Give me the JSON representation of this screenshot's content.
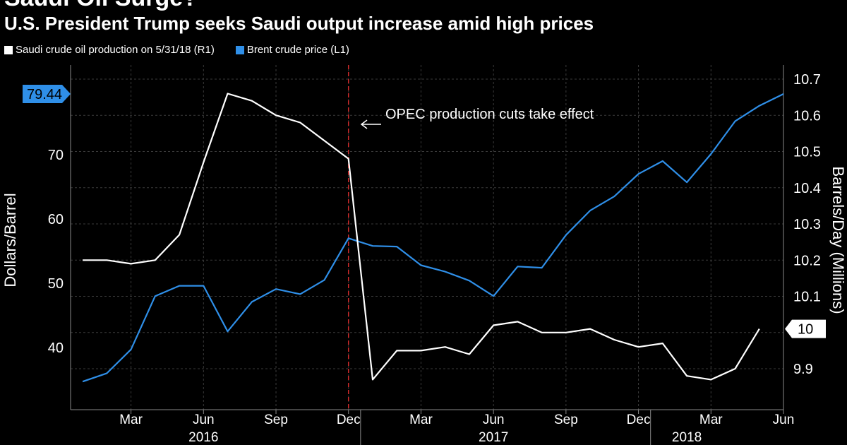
{
  "header": {
    "title": "Saudi Oil Surge?",
    "subtitle": "U.S. President Trump seeks Saudi output increase amid high prices"
  },
  "colors": {
    "background": "#000000",
    "brent": "#2f8fe8",
    "saudi": "#ffffff",
    "marker": "#cc2a2a"
  },
  "chart_data": {
    "type": "line",
    "legend": {
      "placement": "top-left",
      "entries": [
        "Saudi crude oil production on 5/31/18 (R1)",
        "Brent crude price (L1)"
      ]
    },
    "months": [
      "2016-01",
      "2016-02",
      "2016-03",
      "2016-04",
      "2016-05",
      "2016-06",
      "2016-07",
      "2016-08",
      "2016-09",
      "2016-10",
      "2016-11",
      "2016-12",
      "2017-01",
      "2017-02",
      "2017-03",
      "2017-04",
      "2017-05",
      "2017-06",
      "2017-07",
      "2017-08",
      "2017-09",
      "2017-10",
      "2017-11",
      "2017-12",
      "2018-01",
      "2018-02",
      "2018-03",
      "2018-04",
      "2018-05",
      "2018-06"
    ],
    "x_tick_labels": [
      "Mar",
      "Jun",
      "Sep",
      "Dec",
      "Mar",
      "Jun",
      "Sep",
      "Dec",
      "Mar",
      "Jun"
    ],
    "x_tick_months": [
      "2016-03",
      "2016-06",
      "2016-09",
      "2016-12",
      "2017-03",
      "2017-06",
      "2017-09",
      "2017-12",
      "2018-03",
      "2018-06"
    ],
    "year_labels": [
      {
        "label": "2016",
        "center_month": "2016-06"
      },
      {
        "label": "2017",
        "center_month": "2017-06"
      },
      {
        "label": "2018",
        "center_month": "2018-02"
      }
    ],
    "left_axis": {
      "label": "Dollars/Barrel",
      "min": 30,
      "max": 79.44,
      "ticks": [
        40,
        50,
        60,
        70
      ]
    },
    "right_axis": {
      "label": "Barrels/Day (Millions)",
      "min": 9.83,
      "max": 10.7,
      "ticks": [
        9.9,
        10,
        10.1,
        10.2,
        10.3,
        10.4,
        10.5,
        10.6,
        10.7
      ]
    },
    "series": [
      {
        "name": "Brent crude price (L1)",
        "axis": "left",
        "x": [
          "2016-01",
          "2016-02",
          "2016-03",
          "2016-04",
          "2016-05",
          "2016-06",
          "2016-07",
          "2016-08",
          "2016-09",
          "2016-10",
          "2016-11",
          "2016-12",
          "2017-01",
          "2017-02",
          "2017-03",
          "2017-04",
          "2017-05",
          "2017-06",
          "2017-07",
          "2017-08",
          "2017-09",
          "2017-10",
          "2017-11",
          "2017-12",
          "2018-01",
          "2018-02",
          "2018-03",
          "2018-04",
          "2018-05",
          "2018-06"
        ],
        "values": [
          34.7,
          36.0,
          39.7,
          48.0,
          49.6,
          49.6,
          42.5,
          47.1,
          49.1,
          48.3,
          50.5,
          57.0,
          55.8,
          55.7,
          52.8,
          51.8,
          50.4,
          48.0,
          52.6,
          52.4,
          57.5,
          61.3,
          63.5,
          67.0,
          69.0,
          65.7,
          70.1,
          75.2,
          77.6,
          79.44
        ],
        "last_value_label": "79.44"
      },
      {
        "name": "Saudi crude oil production on 5/31/18 (R1)",
        "axis": "right",
        "x": [
          "2016-01",
          "2016-02",
          "2016-03",
          "2016-04",
          "2016-05",
          "2016-06",
          "2016-07",
          "2016-08",
          "2016-09",
          "2016-10",
          "2016-11",
          "2016-12",
          "2017-01",
          "2017-02",
          "2017-03",
          "2017-04",
          "2017-05",
          "2017-06",
          "2017-07",
          "2017-08",
          "2017-09",
          "2017-10",
          "2017-11",
          "2017-12",
          "2018-01",
          "2018-02",
          "2018-03",
          "2018-04",
          "2018-05"
        ],
        "values": [
          10.2,
          10.2,
          10.19,
          10.2,
          10.27,
          10.47,
          10.66,
          10.64,
          10.6,
          10.58,
          10.53,
          10.48,
          9.87,
          9.95,
          9.95,
          9.96,
          9.94,
          10.02,
          10.03,
          10.0,
          10.0,
          10.01,
          9.98,
          9.96,
          9.97,
          9.88,
          9.87,
          9.9,
          10.01
        ],
        "last_value_label": "10"
      }
    ],
    "annotation": {
      "text": "OPEC production cuts take effect",
      "month": "2016-12"
    },
    "grid": true
  }
}
